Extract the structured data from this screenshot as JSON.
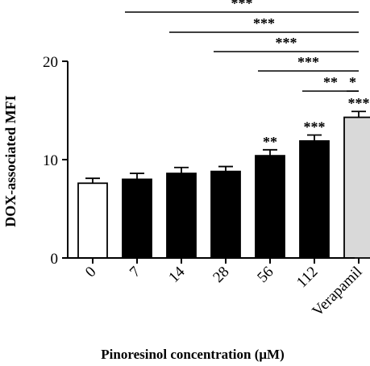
{
  "chart_data": {
    "type": "bar",
    "categories": [
      "0",
      "7",
      "14",
      "28",
      "56",
      "112",
      "Verapamil"
    ],
    "values": [
      7.6,
      8.0,
      8.6,
      8.8,
      10.4,
      11.9,
      14.3
    ],
    "errors": [
      0.5,
      0.6,
      0.6,
      0.5,
      0.6,
      0.6,
      0.6
    ],
    "bar_colors": [
      "#ffffff",
      "#000000",
      "#000000",
      "#000000",
      "#000000",
      "#000000",
      "#d9d9d9"
    ],
    "bar_significance": [
      "",
      "",
      "",
      "",
      "**",
      "***",
      "***"
    ],
    "comparisons": [
      {
        "from": "0",
        "to": "Verapamil",
        "label": "***"
      },
      {
        "from": "7",
        "to": "Verapamil",
        "label": "***"
      },
      {
        "from": "14",
        "to": "Verapamil",
        "label": "***"
      },
      {
        "from": "28",
        "to": "Verapamil",
        "label": "***"
      },
      {
        "from": "56",
        "to": "Verapamil",
        "label": "**"
      },
      {
        "from": "112",
        "to": "Verapamil",
        "label": "*"
      }
    ],
    "ylabel": "DOX-associated MFI",
    "xlabel": "Pinoresinol concentration (μM)",
    "ylim": [
      0,
      20
    ],
    "yticks": [
      0,
      10,
      20
    ],
    "grid": false
  }
}
